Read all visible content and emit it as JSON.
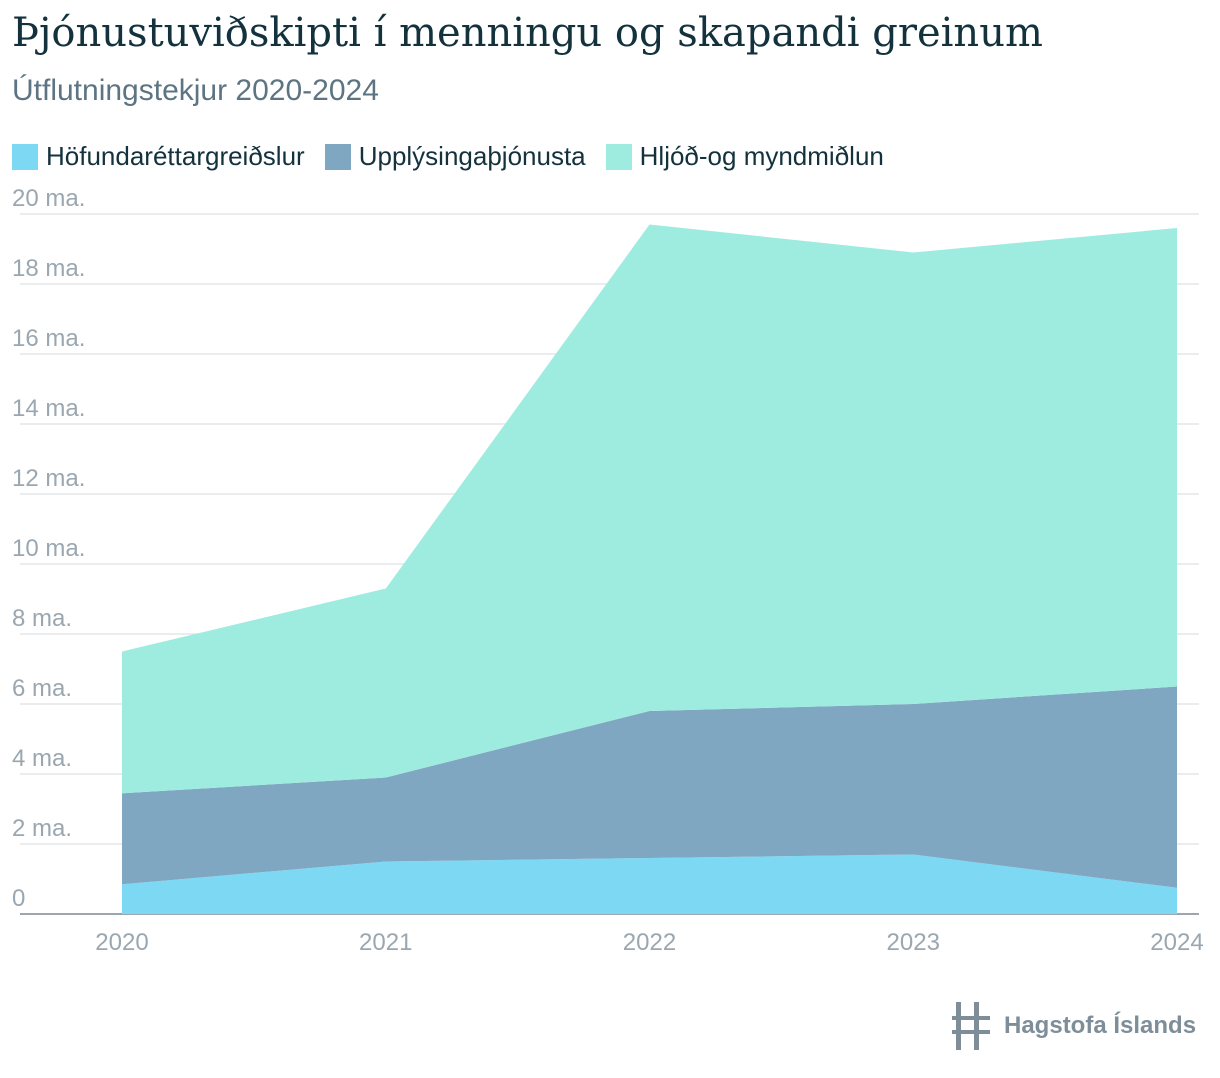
{
  "colors": {
    "title": "#13323d",
    "subtitle": "#5d7482",
    "grid": "#e3e6e8",
    "axis": "#9aa7b0",
    "series": [
      "#7dd9f3",
      "#80a7c2",
      "#9eece0"
    ],
    "logo": "#7e8e98"
  },
  "logo": {
    "text": "Hagstofa Íslands",
    "icon": "hagstofa-logo-icon"
  },
  "chart_data": {
    "type": "area",
    "stacked": true,
    "title": "Þjónustuviðskipti í menningu og skapandi greinum",
    "subtitle": "Útflutningstekjur 2020-2024",
    "categories": [
      "2020",
      "2021",
      "2022",
      "2023",
      "2024"
    ],
    "series": [
      {
        "name": "Höfundaréttargreiðslur",
        "values": [
          0.85,
          1.5,
          1.6,
          1.7,
          0.75
        ]
      },
      {
        "name": "Upplýsingaþjónusta",
        "values": [
          2.6,
          2.4,
          4.2,
          4.3,
          5.75
        ]
      },
      {
        "name": "Hljóð-og myndmiðlun",
        "values": [
          4.05,
          5.4,
          13.9,
          12.9,
          13.1
        ]
      }
    ],
    "y_ticks": [
      "0",
      "2 ma.",
      "4 ma.",
      "6 ma.",
      "8 ma.",
      "10 ma.",
      "12 ma.",
      "14 ma.",
      "16 ma.",
      "18 ma.",
      "20 ma."
    ],
    "ylim": [
      0,
      20
    ],
    "grid": true,
    "legend_position": "top-left"
  }
}
